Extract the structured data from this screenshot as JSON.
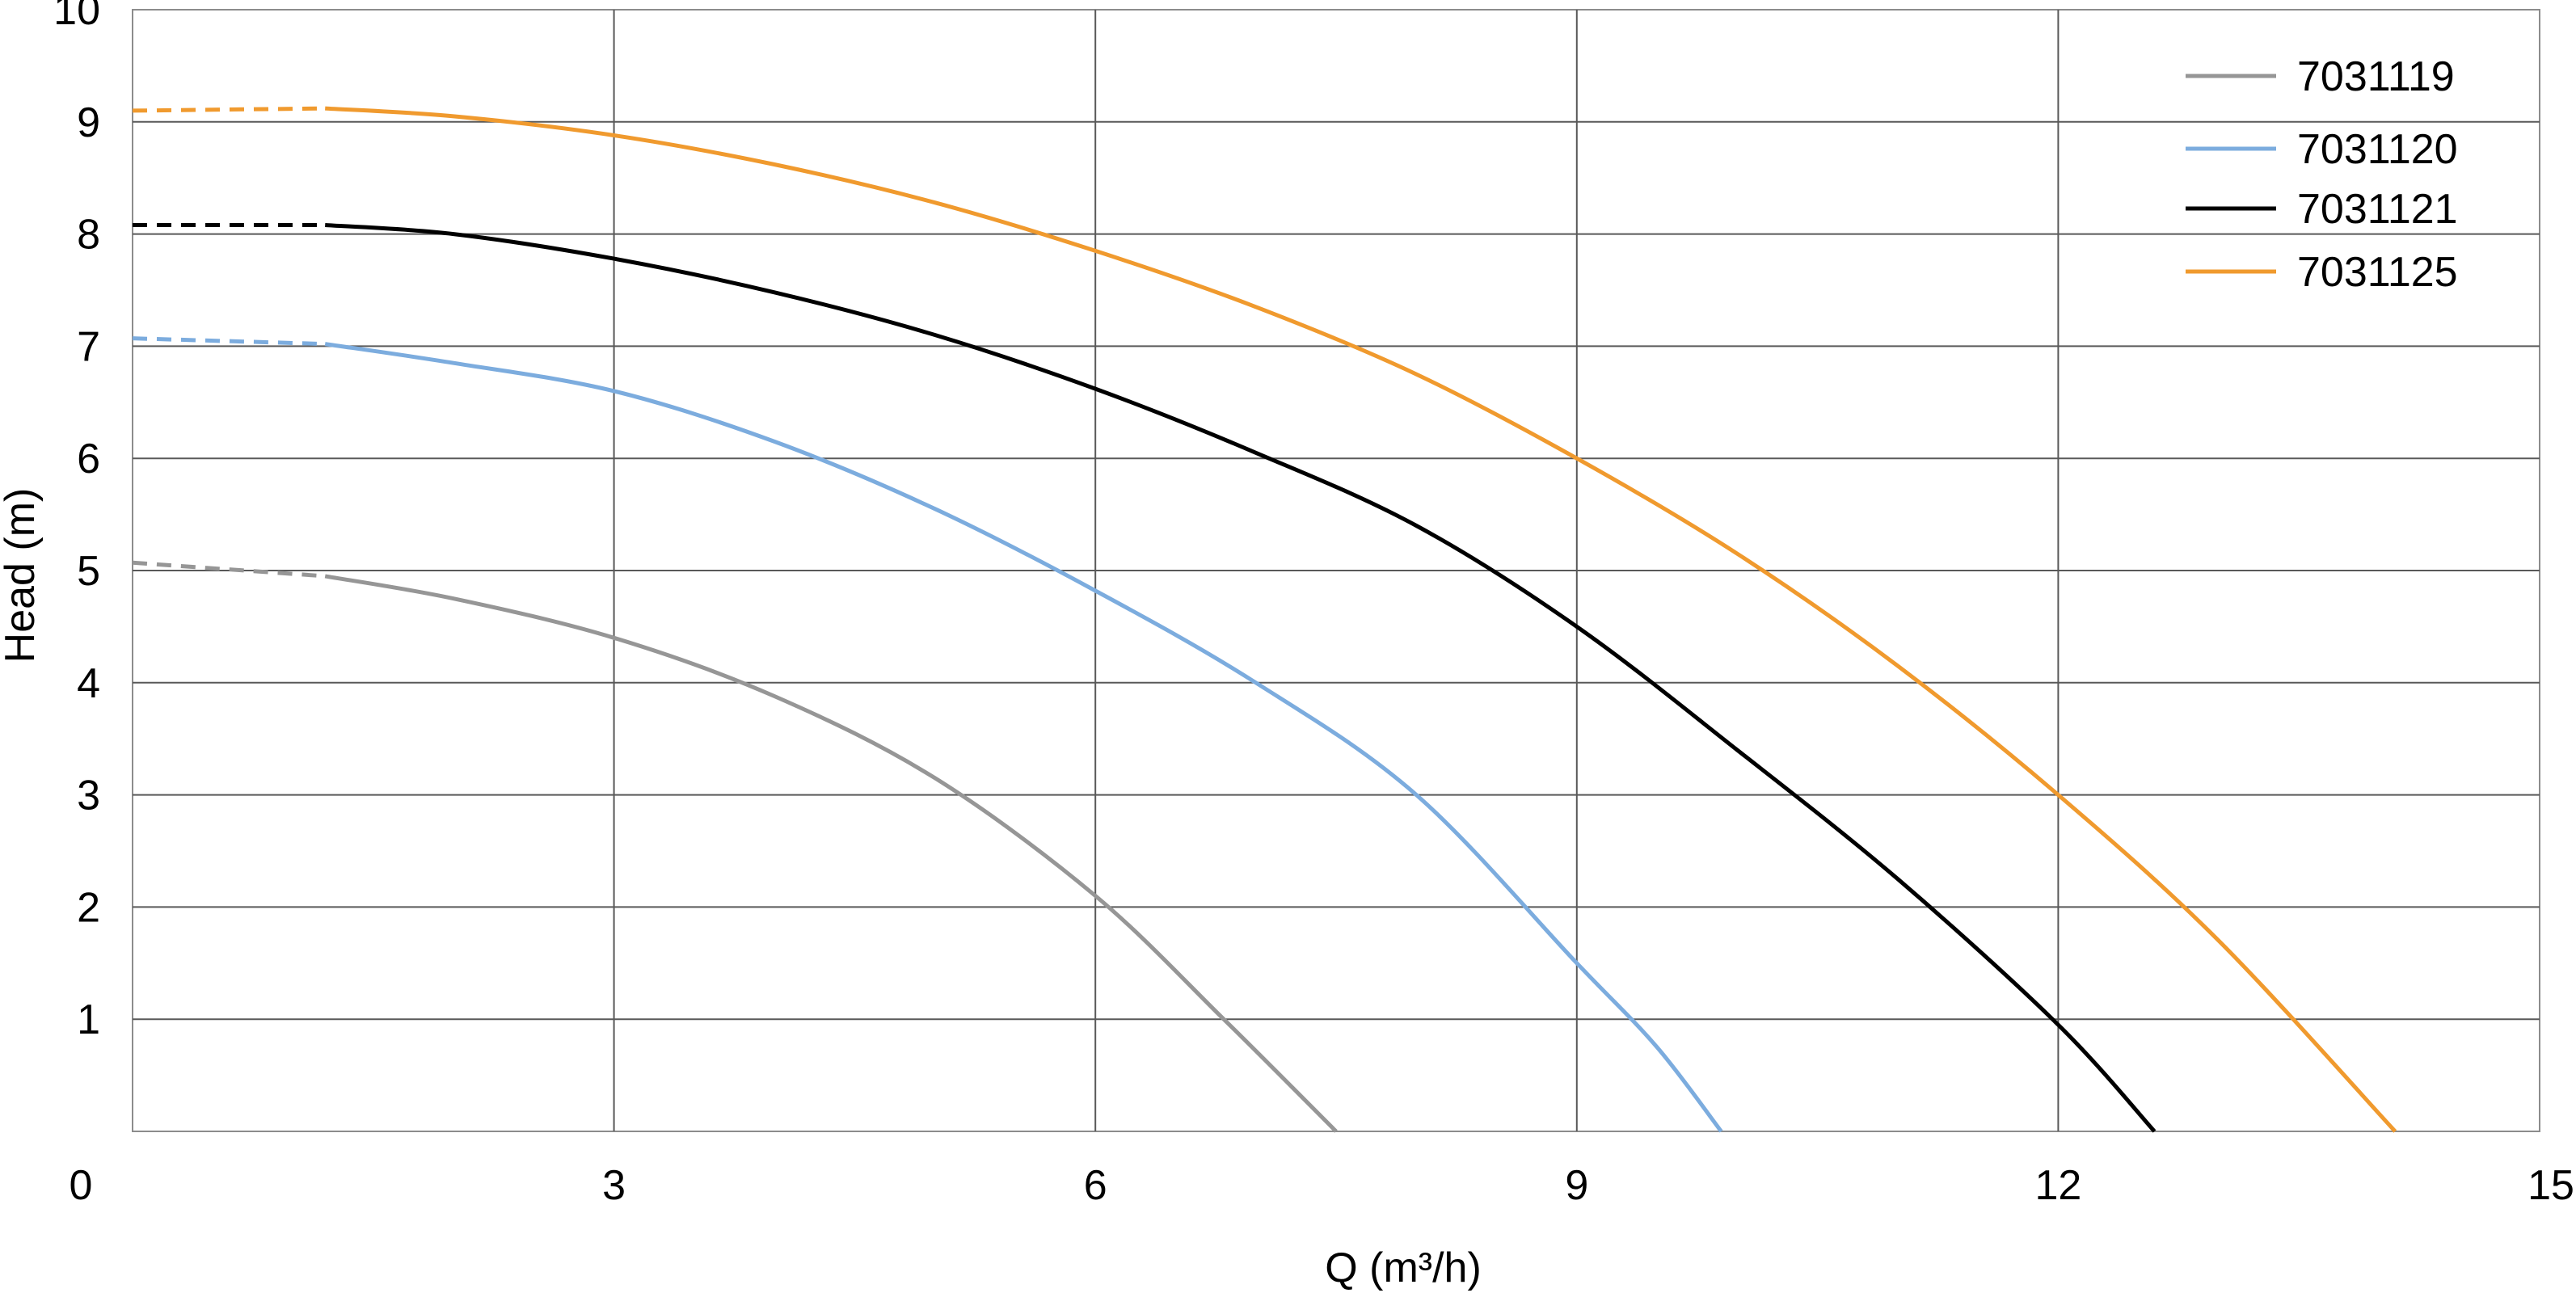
{
  "chart_data": {
    "type": "line",
    "title": "",
    "xlabel": "Q (m³/h)",
    "ylabel": "Head (m)",
    "xlim": [
      0,
      15
    ],
    "ylim": [
      0,
      10
    ],
    "x_ticks": [
      "0",
      "3",
      "6",
      "9",
      "12",
      "15"
    ],
    "y_ticks": [
      "0",
      "1",
      "2",
      "3",
      "4",
      "5",
      "6",
      "7",
      "8",
      "9",
      "10"
    ],
    "grid": true,
    "legend_position": "top-right",
    "series": [
      {
        "name": "7031119",
        "color": "#969696",
        "dashed_segment": [
          [
            0,
            5.07
          ],
          [
            1.2,
            4.95
          ]
        ],
        "points": [
          [
            1.2,
            4.95
          ],
          [
            2.0,
            4.75
          ],
          [
            3.0,
            4.4
          ],
          [
            4.0,
            3.88
          ],
          [
            5.0,
            3.15
          ],
          [
            6.0,
            2.1
          ],
          [
            6.8,
            1.0
          ],
          [
            7.5,
            0.0
          ]
        ]
      },
      {
        "name": "7031120",
        "color": "#7cacde",
        "dashed_segment": [
          [
            0,
            7.07
          ],
          [
            1.2,
            7.02
          ]
        ],
        "points": [
          [
            1.2,
            7.02
          ],
          [
            2.0,
            6.85
          ],
          [
            3.0,
            6.6
          ],
          [
            4.0,
            6.15
          ],
          [
            5.0,
            5.55
          ],
          [
            6.0,
            4.82
          ],
          [
            7.0,
            4.0
          ],
          [
            8.0,
            3.0
          ],
          [
            9.0,
            1.5
          ],
          [
            9.5,
            0.75
          ],
          [
            9.9,
            0.0
          ]
        ]
      },
      {
        "name": "7031121",
        "color": "#000000",
        "dashed_segment": [
          [
            0,
            8.08
          ],
          [
            1.2,
            8.08
          ]
        ],
        "points": [
          [
            1.2,
            8.08
          ],
          [
            2.0,
            8.0
          ],
          [
            3.0,
            7.78
          ],
          [
            4.0,
            7.48
          ],
          [
            5.0,
            7.1
          ],
          [
            6.0,
            6.62
          ],
          [
            7.0,
            6.05
          ],
          [
            8.0,
            5.4
          ],
          [
            9.0,
            4.5
          ],
          [
            10.0,
            3.4
          ],
          [
            11.0,
            2.25
          ],
          [
            12.0,
            0.95
          ],
          [
            12.6,
            0.0
          ]
        ]
      },
      {
        "name": "7031125",
        "color": "#f09a2e",
        "dashed_segment": [
          [
            0,
            9.1
          ],
          [
            1.2,
            9.12
          ]
        ],
        "points": [
          [
            1.2,
            9.12
          ],
          [
            2.0,
            9.05
          ],
          [
            3.0,
            8.88
          ],
          [
            4.0,
            8.62
          ],
          [
            5.0,
            8.28
          ],
          [
            6.0,
            7.85
          ],
          [
            7.0,
            7.35
          ],
          [
            8.0,
            6.75
          ],
          [
            9.0,
            6.0
          ],
          [
            10.0,
            5.15
          ],
          [
            11.0,
            4.15
          ],
          [
            12.0,
            3.0
          ],
          [
            13.0,
            1.7
          ],
          [
            14.1,
            0.0
          ]
        ]
      }
    ]
  }
}
